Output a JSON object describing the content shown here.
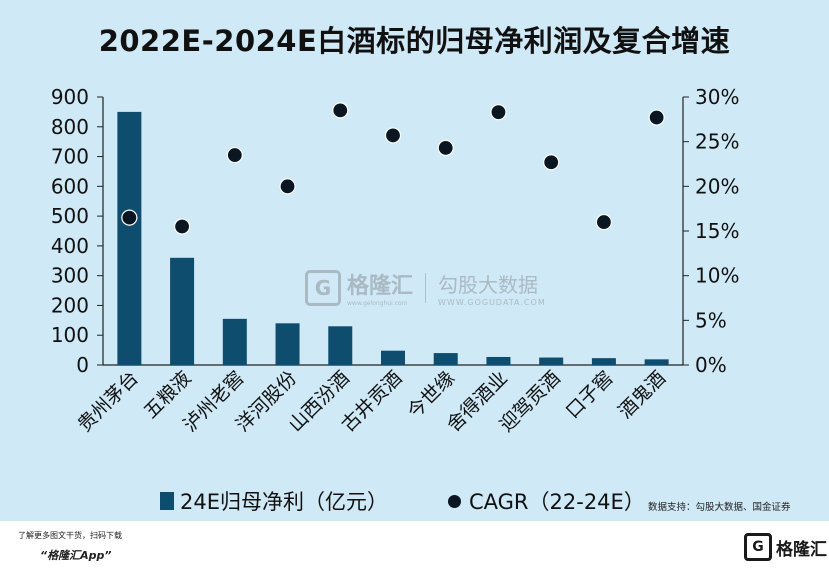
{
  "title": "2022E-2024E白酒标的归母净利润及复合增速",
  "colors": {
    "bar": "#0e4d6e",
    "dot": "#0a1722",
    "background": "#cfe9f6"
  },
  "legend": {
    "bar_label": "24E归母净利（亿元）",
    "dot_label": "CAGR（22-24E）"
  },
  "source": "数据支持：勾股大数据、国金证券",
  "watermark": {
    "logo_char": "G",
    "brand": "格隆汇",
    "brand_url": "www.gelonghui.com",
    "brand2": "勾股大数据",
    "brand2_url": "WWW.GOGUDATA.COM"
  },
  "footer": {
    "line1": "了解更多图文干货，扫码下载",
    "app": "“格隆汇App”",
    "logo_char": "G",
    "logo_name": "格隆汇"
  },
  "chart_data": {
    "type": "bar",
    "title": "2022E-2024E白酒标的归母净利润及复合增速",
    "categories": [
      "贵州茅台",
      "五粮液",
      "泸州老窖",
      "洋河股份",
      "山西汾酒",
      "古井贡酒",
      "今世缘",
      "舍得酒业",
      "迎驾贡酒",
      "口子窖",
      "酒鬼酒"
    ],
    "series": [
      {
        "name": "24E归母净利（亿元）",
        "type": "bar",
        "axis": "left",
        "values": [
          850,
          360,
          155,
          140,
          130,
          48,
          40,
          27,
          25,
          23,
          19
        ]
      },
      {
        "name": "CAGR（22-24E）",
        "type": "scatter",
        "axis": "right",
        "unit": "%",
        "values": [
          16.5,
          15.5,
          23.5,
          20.0,
          28.5,
          25.7,
          24.3,
          28.3,
          22.7,
          16.0,
          27.7
        ]
      }
    ],
    "ylim_left": [
      0,
      900
    ],
    "yticks_left": [
      "0",
      "100",
      "200",
      "300",
      "400",
      "500",
      "600",
      "700",
      "800",
      "900"
    ],
    "ylim_right": [
      0,
      30
    ],
    "yticks_right": [
      "0%",
      "5%",
      "10%",
      "15%",
      "20%",
      "25%",
      "30%"
    ],
    "legend_position": "bottom",
    "grid": false
  }
}
